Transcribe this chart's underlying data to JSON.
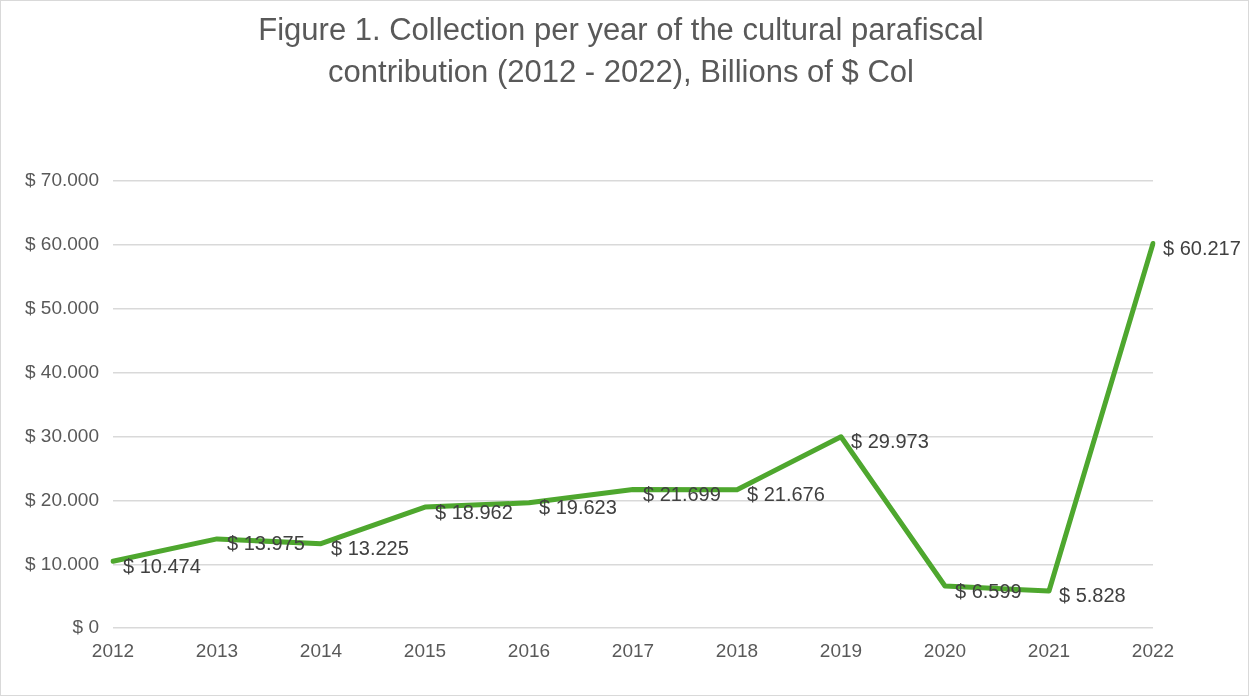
{
  "chart_data": {
    "type": "line",
    "title": "Figure 1. Collection per year of the cultural parafiscal contribution (2012 - 2022), Billions of $ Col",
    "categories": [
      "2012",
      "2013",
      "2014",
      "2015",
      "2016",
      "2017",
      "2018",
      "2019",
      "2020",
      "2021",
      "2022"
    ],
    "series": [
      {
        "color": "#4ea72e",
        "values": [
          10474,
          13975,
          13225,
          18962,
          19623,
          21699,
          21676,
          29973,
          6599,
          5828,
          60217
        ],
        "value_labels": [
          "$ 10.474",
          "$ 13.975",
          "$ 13.225",
          "$ 18.962",
          "$ 19.623",
          "$ 21.699",
          "$ 21.676",
          "$ 29.973",
          "$ 6.599",
          "$ 5.828",
          "$ 60.217"
        ]
      }
    ],
    "ylim": [
      0,
      70000
    ],
    "yticks": [
      {
        "value": 0,
        "label": "$ 0"
      },
      {
        "value": 10000,
        "label": "$ 10.000"
      },
      {
        "value": 20000,
        "label": "$ 20.000"
      },
      {
        "value": 30000,
        "label": "$ 30.000"
      },
      {
        "value": 40000,
        "label": "$ 40.000"
      },
      {
        "value": 50000,
        "label": "$ 50.000"
      },
      {
        "value": 60000,
        "label": "$ 60.000"
      },
      {
        "value": 70000,
        "label": "$ 70.000"
      }
    ],
    "grid": "y",
    "legend": false,
    "marker": "none",
    "line_style": "solid"
  }
}
